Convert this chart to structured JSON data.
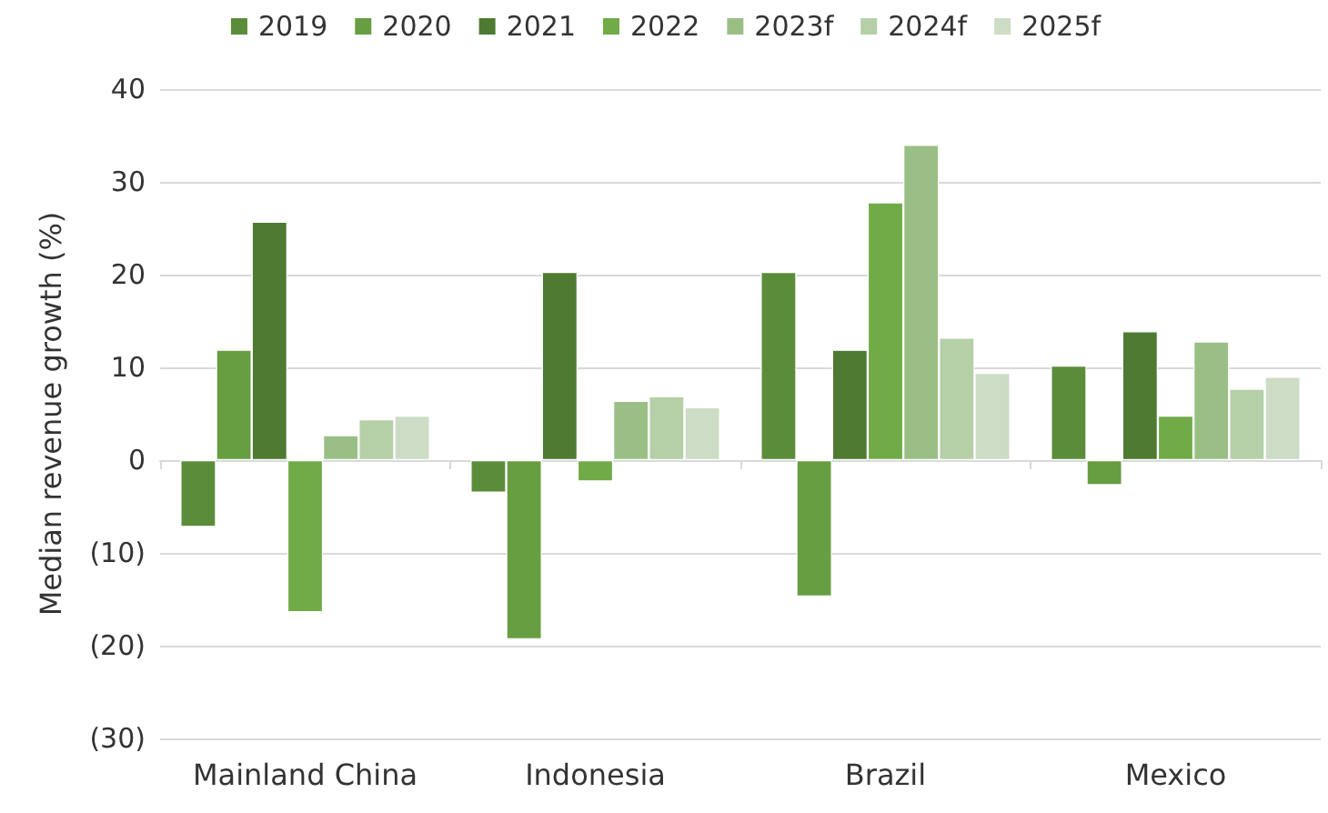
{
  "chart_data": {
    "type": "bar",
    "ylabel": "Median revenue growth (%)",
    "categories": [
      "Mainland China",
      "Indonesia",
      "Brazil",
      "Mexico"
    ],
    "series": [
      {
        "name": "2019",
        "color": "#5b8c3a",
        "values": [
          -7.2,
          -3.5,
          20.3,
          10.2
        ]
      },
      {
        "name": "2020",
        "color": "#679e41",
        "values": [
          11.9,
          -19.3,
          -14.7,
          -2.7
        ]
      },
      {
        "name": "2021",
        "color": "#4f7a31",
        "values": [
          25.7,
          20.3,
          11.9,
          13.9
        ]
      },
      {
        "name": "2022",
        "color": "#70ab48",
        "values": [
          -16.4,
          -2.3,
          27.8,
          4.8
        ]
      },
      {
        "name": "2023f",
        "color": "#9abf85",
        "values": [
          2.7,
          6.4,
          34.0,
          12.8
        ]
      },
      {
        "name": "2024f",
        "color": "#b5cfa7",
        "values": [
          4.4,
          6.9,
          13.2,
          7.7
        ]
      },
      {
        "name": "2025f",
        "color": "#ccdcc5",
        "values": [
          4.8,
          5.7,
          9.4,
          9.0
        ]
      }
    ],
    "ylim": [
      -30,
      40
    ],
    "yticks": [
      {
        "value": -30,
        "label": "(30)"
      },
      {
        "value": -20,
        "label": "(20)"
      },
      {
        "value": -10,
        "label": "(10)"
      },
      0,
      10,
      20,
      30,
      40
    ],
    "grid": "y",
    "legend": "top"
  }
}
